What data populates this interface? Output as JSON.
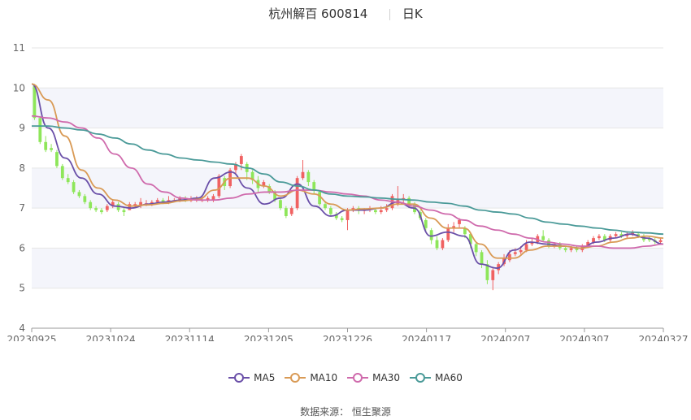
{
  "header": {
    "title": "杭州解百 600814",
    "period": "日K"
  },
  "source": "数据来源： 恒生聚源",
  "chart_data": {
    "type": "candlestick",
    "y_ticks": [
      4,
      5,
      6,
      7,
      8,
      9,
      10,
      11
    ],
    "ylim": [
      4,
      11
    ],
    "x_tick_labels": [
      "20230925",
      "20231024",
      "20231114",
      "20231205",
      "20231226",
      "20240117",
      "20240207",
      "20240307",
      "20240327"
    ],
    "colors": {
      "up": "#f06262",
      "down": "#8ee65a",
      "MA5": "#6a4fa8",
      "MA10": "#d99a55",
      "MA30": "#cf6aac",
      "MA60": "#4a9a98",
      "band": "#f4f5fb"
    },
    "legend": [
      "MA5",
      "MA10",
      "MA30",
      "MA60"
    ],
    "candles": [
      [
        10.05,
        9.25,
        10.1,
        9.2
      ],
      [
        9.25,
        8.65,
        9.3,
        8.6
      ],
      [
        8.65,
        8.45,
        8.8,
        8.4
      ],
      [
        8.5,
        8.45,
        8.6,
        8.4
      ],
      [
        8.4,
        8.05,
        8.45,
        8.0
      ],
      [
        8.05,
        7.75,
        8.1,
        7.7
      ],
      [
        7.75,
        7.65,
        7.85,
        7.6
      ],
      [
        7.65,
        7.4,
        7.7,
        7.35
      ],
      [
        7.4,
        7.3,
        7.45,
        7.25
      ],
      [
        7.3,
        7.15,
        7.35,
        7.1
      ],
      [
        7.15,
        7.0,
        7.2,
        6.95
      ],
      [
        7.0,
        6.95,
        7.05,
        6.9
      ],
      [
        6.95,
        6.9,
        7.0,
        6.85
      ],
      [
        6.95,
        7.05,
        7.1,
        6.9
      ],
      [
        7.05,
        7.15,
        7.2,
        7.0
      ],
      [
        7.1,
        6.95,
        7.15,
        6.9
      ],
      [
        6.95,
        6.9,
        7.0,
        6.8
      ],
      [
        6.95,
        7.1,
        7.15,
        6.95
      ],
      [
        7.05,
        7.1,
        7.15,
        7.0
      ],
      [
        7.05,
        7.15,
        7.25,
        7.0
      ],
      [
        7.1,
        7.12,
        7.2,
        7.05
      ],
      [
        7.1,
        7.15,
        7.2,
        7.05
      ],
      [
        7.15,
        7.2,
        7.25,
        7.1
      ],
      [
        7.2,
        7.15,
        7.25,
        7.1
      ],
      [
        7.15,
        7.2,
        7.3,
        7.1
      ],
      [
        7.2,
        7.2,
        7.25,
        7.15
      ],
      [
        7.2,
        7.25,
        7.3,
        7.15
      ],
      [
        7.25,
        7.2,
        7.3,
        7.15
      ],
      [
        7.2,
        7.2,
        7.3,
        7.15
      ],
      [
        7.2,
        7.25,
        7.3,
        7.15
      ],
      [
        7.2,
        7.2,
        7.3,
        7.15
      ],
      [
        7.2,
        7.25,
        7.3,
        7.15
      ],
      [
        7.2,
        7.3,
        7.35,
        7.15
      ],
      [
        7.3,
        7.8,
        7.85,
        7.25
      ],
      [
        7.75,
        7.55,
        7.8,
        7.45
      ],
      [
        7.55,
        7.95,
        8.0,
        7.5
      ],
      [
        7.95,
        8.1,
        8.15,
        7.85
      ],
      [
        8.1,
        8.3,
        8.35,
        7.95
      ],
      [
        8.1,
        7.9,
        8.15,
        7.7
      ],
      [
        7.9,
        7.7,
        7.95,
        7.6
      ],
      [
        7.7,
        7.5,
        7.8,
        7.4
      ],
      [
        7.55,
        7.65,
        7.7,
        7.5
      ],
      [
        7.55,
        7.4,
        7.6,
        7.35
      ],
      [
        7.4,
        7.2,
        7.45,
        7.15
      ],
      [
        7.2,
        7.0,
        7.25,
        6.95
      ],
      [
        7.0,
        6.8,
        7.05,
        6.75
      ],
      [
        6.85,
        7.0,
        7.05,
        6.8
      ],
      [
        7.0,
        7.75,
        7.8,
        6.95
      ],
      [
        7.75,
        7.9,
        8.2,
        7.7
      ],
      [
        7.9,
        7.65,
        7.95,
        7.55
      ],
      [
        7.65,
        7.45,
        7.7,
        7.35
      ],
      [
        7.4,
        7.1,
        7.45,
        7.05
      ],
      [
        7.1,
        7.0,
        7.15,
        6.95
      ],
      [
        7.0,
        6.85,
        7.05,
        6.8
      ],
      [
        6.85,
        6.75,
        6.9,
        6.7
      ],
      [
        6.75,
        6.7,
        6.8,
        6.65
      ],
      [
        6.7,
        6.95,
        7.0,
        6.45
      ],
      [
        6.95,
        7.0,
        7.05,
        6.9
      ],
      [
        7.0,
        6.95,
        7.05,
        6.85
      ],
      [
        6.95,
        6.95,
        7.0,
        6.85
      ],
      [
        6.95,
        7.0,
        7.05,
        6.9
      ],
      [
        6.95,
        6.9,
        7.0,
        6.85
      ],
      [
        6.9,
        6.95,
        7.05,
        6.85
      ],
      [
        6.95,
        7.0,
        7.1,
        6.9
      ],
      [
        7.0,
        7.3,
        7.35,
        6.95
      ],
      [
        7.1,
        7.2,
        7.55,
        7.05
      ],
      [
        7.2,
        7.25,
        7.35,
        7.1
      ],
      [
        7.25,
        7.1,
        7.3,
        7.0
      ],
      [
        7.1,
        6.9,
        7.15,
        6.85
      ],
      [
        6.9,
        6.75,
        6.95,
        6.7
      ],
      [
        6.7,
        6.5,
        6.75,
        6.4
      ],
      [
        6.45,
        6.2,
        6.5,
        6.1
      ],
      [
        6.2,
        6.0,
        6.3,
        5.95
      ],
      [
        6.0,
        6.2,
        6.25,
        5.95
      ],
      [
        6.2,
        6.5,
        6.6,
        6.15
      ],
      [
        6.5,
        6.55,
        6.65,
        6.4
      ],
      [
        6.6,
        6.7,
        6.75,
        6.5
      ],
      [
        6.5,
        6.35,
        6.55,
        6.25
      ],
      [
        6.35,
        6.1,
        6.4,
        6.0
      ],
      [
        6.1,
        5.9,
        6.15,
        5.8
      ],
      [
        5.9,
        5.6,
        5.95,
        5.5
      ],
      [
        5.6,
        5.2,
        5.7,
        5.1
      ],
      [
        5.2,
        5.45,
        5.5,
        4.95
      ],
      [
        5.45,
        5.6,
        5.65,
        5.35
      ],
      [
        5.6,
        5.75,
        5.85,
        5.55
      ],
      [
        5.7,
        5.85,
        5.95,
        5.65
      ],
      [
        5.85,
        5.9,
        6.0,
        5.8
      ],
      [
        5.9,
        5.95,
        6.05,
        5.85
      ],
      [
        5.95,
        6.1,
        6.2,
        5.9
      ],
      [
        6.1,
        6.15,
        6.25,
        6.05
      ],
      [
        6.15,
        6.3,
        6.35,
        6.1
      ],
      [
        6.3,
        6.2,
        6.45,
        6.15
      ],
      [
        6.2,
        6.05,
        6.25,
        6.0
      ],
      [
        6.05,
        6.1,
        6.15,
        6.0
      ],
      [
        6.1,
        6.0,
        6.15,
        5.95
      ],
      [
        6.0,
        5.95,
        6.05,
        5.9
      ],
      [
        5.95,
        6.0,
        6.05,
        5.9
      ],
      [
        6.0,
        5.95,
        6.05,
        5.9
      ],
      [
        5.95,
        6.05,
        6.1,
        5.9
      ],
      [
        6.05,
        6.15,
        6.2,
        6.0
      ],
      [
        6.15,
        6.25,
        6.3,
        6.1
      ],
      [
        6.25,
        6.3,
        6.35,
        6.2
      ],
      [
        6.3,
        6.2,
        6.35,
        6.15
      ],
      [
        6.2,
        6.3,
        6.35,
        6.15
      ],
      [
        6.3,
        6.35,
        6.4,
        6.25
      ],
      [
        6.35,
        6.3,
        6.4,
        6.25
      ],
      [
        6.3,
        6.35,
        6.4,
        6.25
      ],
      [
        6.35,
        6.4,
        6.45,
        6.3
      ],
      [
        6.35,
        6.3,
        6.4,
        6.25
      ],
      [
        6.3,
        6.2,
        6.35,
        6.15
      ],
      [
        6.25,
        6.2,
        6.3,
        6.15
      ],
      [
        6.2,
        6.15,
        6.25,
        6.1
      ],
      [
        6.15,
        6.2,
        6.25,
        6.1
      ]
    ],
    "ma": {
      "MA5": [
        10.1,
        9.0,
        8.25,
        7.75,
        7.35,
        7.05,
        7.0,
        7.1,
        7.15,
        7.2,
        7.25,
        7.75,
        7.9,
        7.5,
        7.1,
        7.25,
        7.6,
        7.05,
        6.8,
        6.95,
        6.95,
        7.0,
        7.15,
        7.0,
        6.3,
        6.4,
        6.3,
        5.6,
        5.5,
        5.95,
        6.15,
        6.1,
        6.05,
        6.0,
        6.15,
        6.25,
        6.35,
        6.25,
        6.1
      ],
      "MA10": [
        10.1,
        9.7,
        8.8,
        7.95,
        7.5,
        7.2,
        7.05,
        7.08,
        7.12,
        7.18,
        7.22,
        7.45,
        7.75,
        7.75,
        7.55,
        7.3,
        7.45,
        7.35,
        7.1,
        6.95,
        6.98,
        7.0,
        7.1,
        7.1,
        6.75,
        6.5,
        6.5,
        6.1,
        5.75,
        5.75,
        5.95,
        6.05,
        6.05,
        6.0,
        6.05,
        6.15,
        6.25,
        6.3,
        6.25
      ],
      "MA30": [
        9.3,
        9.25,
        9.15,
        9.0,
        8.75,
        8.35,
        8.0,
        7.6,
        7.4,
        7.25,
        7.2,
        7.2,
        7.25,
        7.35,
        7.4,
        7.4,
        7.45,
        7.45,
        7.4,
        7.35,
        7.3,
        7.2,
        7.15,
        7.05,
        6.95,
        6.85,
        6.7,
        6.55,
        6.45,
        6.35,
        6.25,
        6.15,
        6.1,
        6.05,
        6.05,
        6.0,
        6.0,
        6.05,
        6.1
      ],
      "MA60": [
        9.05,
        9.05,
        9.0,
        8.95,
        8.85,
        8.75,
        8.6,
        8.45,
        8.35,
        8.25,
        8.2,
        8.15,
        8.1,
        8.0,
        7.85,
        7.65,
        7.55,
        7.45,
        7.35,
        7.3,
        7.28,
        7.25,
        7.22,
        7.2,
        7.15,
        7.12,
        7.05,
        6.95,
        6.9,
        6.85,
        6.75,
        6.65,
        6.6,
        6.55,
        6.5,
        6.45,
        6.4,
        6.38,
        6.35
      ]
    }
  }
}
